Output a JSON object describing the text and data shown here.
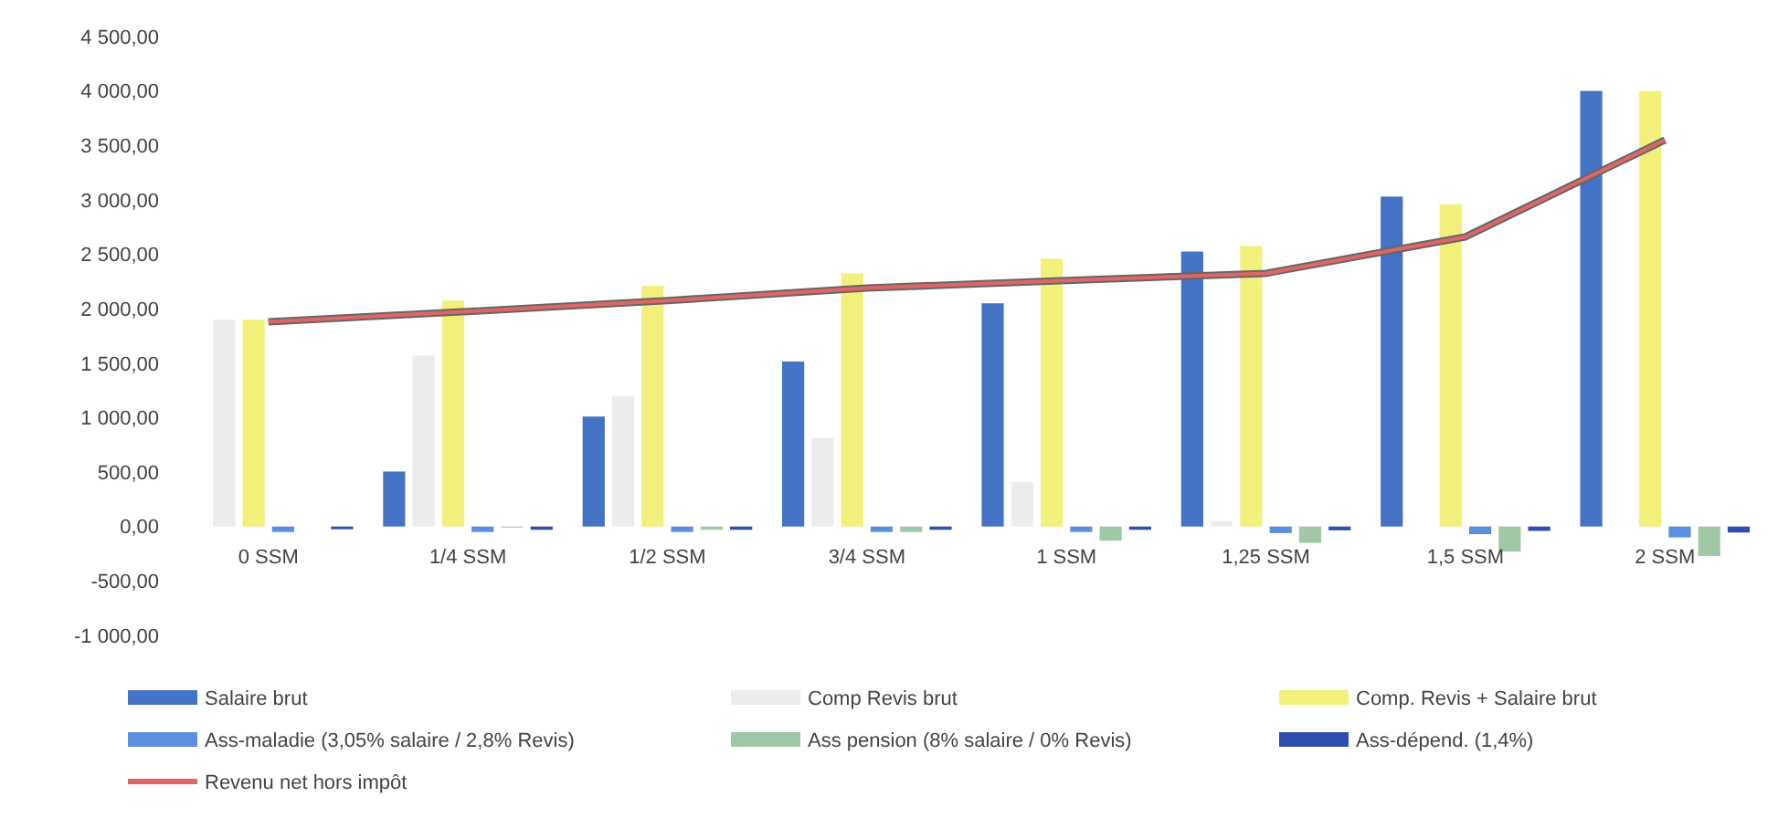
{
  "chart_data": {
    "type": "bar",
    "categories": [
      "0 SSM",
      "1/4 SSM",
      "1/2 SSM",
      "3/4 SSM",
      "1 SSM",
      "1,25 SSM",
      "1,5 SSM",
      "2 SSM"
    ],
    "series": [
      {
        "name": "Salaire brut",
        "color": "#4472c4",
        "values": [
          0,
          505,
          1010,
          1515,
          2050,
          2525,
          3030,
          4000
        ]
      },
      {
        "name": "Comp Revis brut",
        "color": "#ececec",
        "values": [
          1900,
          1570,
          1200,
          810,
          410,
          50,
          0,
          0
        ]
      },
      {
        "name": "Comp. Revis + Salaire brut",
        "color": "#f2f07a",
        "values": [
          1900,
          2075,
          2210,
          2325,
          2460,
          2575,
          2960,
          4000
        ]
      },
      {
        "name": "Ass-maladie (3,05% salaire / 2,8% Revis)",
        "color": "#5b8fe0",
        "values": [
          -50,
          -50,
          -50,
          -50,
          -50,
          -60,
          -70,
          -100
        ]
      },
      {
        "name": "Ass pension (8% salaire / 0% Revis)",
        "color": "#9fc9a6",
        "values": [
          0,
          -10,
          -30,
          -50,
          -130,
          -150,
          -230,
          -270
        ]
      },
      {
        "name": "Ass-dépend. (1,4%)",
        "color": "#2f4fb0",
        "values": [
          -25,
          -30,
          -30,
          -30,
          -30,
          -35,
          -40,
          -55
        ]
      },
      {
        "name": "Revenu net hors impôt",
        "type": "line",
        "color": "#e06666",
        "values": [
          1880,
          1975,
          2075,
          2190,
          2260,
          2325,
          2660,
          3550
        ]
      }
    ],
    "ylim": [
      -1000,
      4500
    ],
    "yticks": [
      {
        "value": -1000,
        "label": "-1 000,00"
      },
      {
        "value": -500,
        "label": "-500,00"
      },
      {
        "value": 0,
        "label": "0,00"
      },
      {
        "value": 500,
        "label": "500,00"
      },
      {
        "value": 1000,
        "label": "1 000,00"
      },
      {
        "value": 1500,
        "label": "1 500,00"
      },
      {
        "value": 2000,
        "label": "2 000,00"
      },
      {
        "value": 2500,
        "label": "2 500,00"
      },
      {
        "value": 3000,
        "label": "3 000,00"
      },
      {
        "value": 3500,
        "label": "3 500,00"
      },
      {
        "value": 4000,
        "label": "4 000,00"
      },
      {
        "value": 4500,
        "label": "4 500,00"
      }
    ],
    "legend": "bottom",
    "marker": "none"
  }
}
